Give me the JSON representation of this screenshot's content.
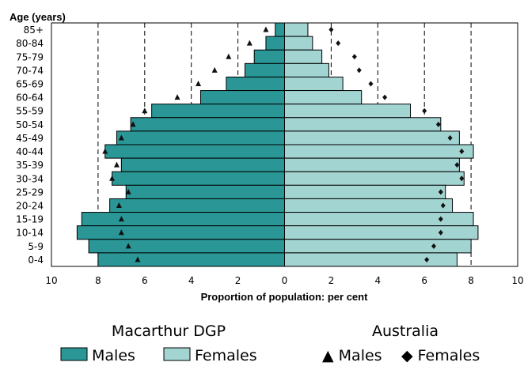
{
  "chart_data": {
    "type": "bar",
    "title": "",
    "ylabel": "Age (years)",
    "xlabel": "Proportion of population: per cent",
    "xlim": [
      -10,
      10
    ],
    "x_ticks": [
      10,
      8,
      6,
      4,
      2,
      0,
      2,
      4,
      6,
      8,
      10
    ],
    "grid": "dashed vertical lines at 2, 4, 6, 8",
    "categories": [
      "85+",
      "80-84",
      "75-79",
      "70-74",
      "65-69",
      "60-64",
      "55-59",
      "50-54",
      "45-49",
      "40-44",
      "35-39",
      "30-34",
      "25-29",
      "20-24",
      "15-19",
      "10-14",
      "5-9",
      "0-4"
    ],
    "series": [
      {
        "name": "Males",
        "group": "Macarthur DGP",
        "kind": "bar",
        "side": "left",
        "color": "#2a9696",
        "values": [
          0.4,
          0.8,
          1.3,
          1.7,
          2.5,
          3.6,
          5.7,
          6.6,
          7.2,
          7.7,
          7.0,
          7.4,
          6.8,
          7.5,
          8.7,
          8.9,
          8.4,
          8.0
        ]
      },
      {
        "name": "Females",
        "group": "Macarthur DGP",
        "kind": "bar",
        "side": "right",
        "color": "#a2d4d2",
        "values": [
          1.0,
          1.2,
          1.6,
          1.9,
          2.5,
          3.3,
          5.4,
          6.7,
          7.5,
          8.1,
          7.5,
          7.7,
          6.9,
          7.2,
          8.1,
          8.3,
          8.0,
          7.4
        ]
      },
      {
        "name": "Males",
        "group": "Australia",
        "kind": "marker",
        "marker": "triangle",
        "side": "left",
        "values": [
          0.8,
          1.5,
          2.4,
          3.0,
          3.7,
          4.6,
          6.0,
          6.5,
          7.0,
          7.7,
          7.2,
          7.4,
          6.7,
          7.1,
          7.0,
          7.0,
          6.7,
          6.3
        ]
      },
      {
        "name": "Females",
        "group": "Australia",
        "kind": "marker",
        "marker": "diamond",
        "side": "right",
        "values": [
          2.0,
          2.3,
          3.0,
          3.2,
          3.7,
          4.3,
          6.0,
          6.6,
          7.1,
          7.6,
          7.4,
          7.6,
          6.7,
          6.8,
          6.7,
          6.7,
          6.4,
          6.1
        ]
      }
    ]
  },
  "legend": {
    "left_group_title": "Macarthur DGP",
    "right_group_title": "Australia",
    "males_label": "Males",
    "females_label": "Females",
    "aus_males_label": "▲ Males",
    "aus_females_label": "◆ Females",
    "male_bar_color": "#2a9696",
    "female_bar_color": "#a2d4d2"
  }
}
